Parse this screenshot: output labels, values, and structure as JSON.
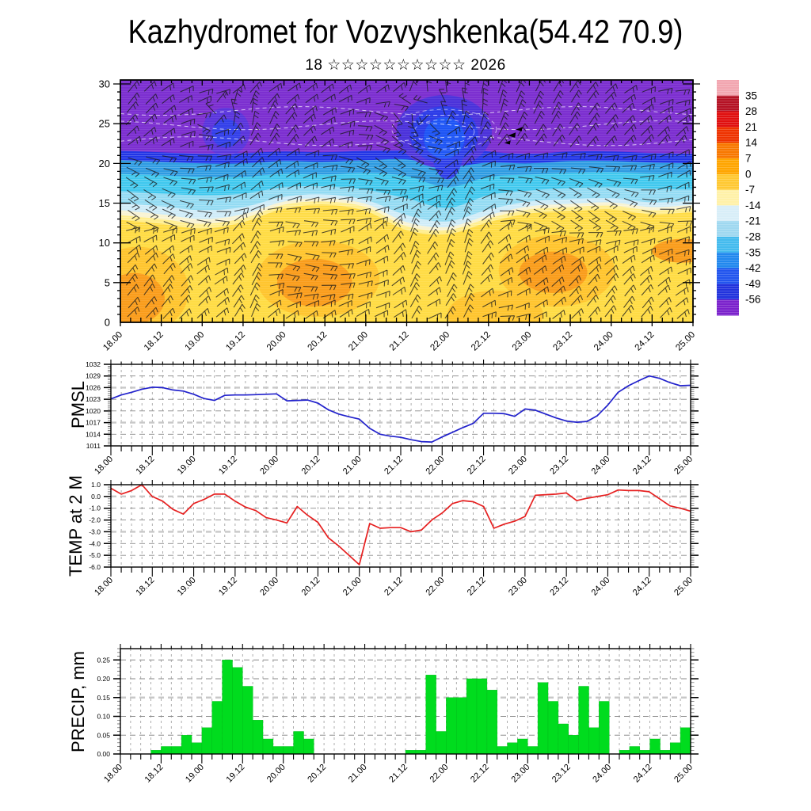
{
  "title": "Kazhydromet for Vozvyshkenka(54.42 70.9)",
  "subtitle": {
    "day": "18",
    "stars": "☆☆☆☆☆☆☆☆☆☆",
    "year": "2026"
  },
  "time_axis": {
    "major_labels": [
      "18.00",
      "18.12",
      "19.00",
      "19.12",
      "20.00",
      "20.12",
      "21.00",
      "21.12",
      "22.00",
      "22.12",
      "23.00",
      "23.12",
      "24.00",
      "24.12",
      "25.00"
    ],
    "total_hours": 168,
    "major_step_hours": 12,
    "minor_step_hours": 3
  },
  "colorbar": {
    "tick_labels": [
      "35",
      "28",
      "21",
      "14",
      "7",
      "0",
      "-7",
      "-14",
      "-21",
      "-28",
      "-35",
      "-42",
      "-49",
      "-56"
    ],
    "cell_colors_top_to_bottom": [
      "#F2A6B0",
      "#B51225",
      "#E01010",
      "#EE3300",
      "#F87800",
      "#FFA500",
      "#FFC832",
      "#FFF1A8",
      "#D8EEF8",
      "#9FD8F0",
      "#44BBEE",
      "#2288EE",
      "#2255EE",
      "#2233DD",
      "#7B22CC"
    ]
  },
  "chart_data": [
    {
      "type": "heatmap",
      "name": "temperature-wind-cross-section",
      "ylabel_ticks": [
        "0",
        "5",
        "10",
        "15",
        "20",
        "25",
        "30"
      ],
      "ylim_km": [
        0,
        30.5
      ],
      "sample_hours": [
        0,
        12,
        24,
        36,
        48,
        60,
        72,
        84,
        96,
        108,
        120,
        132,
        144,
        156,
        168
      ],
      "band_colors_top_to_bottom": [
        "#7C2FD0",
        "#2135E6",
        "#2E9BE2",
        "#3FC8EE",
        "#93DBF3",
        "#CFECF8",
        "#F8F3D2",
        "#FFEE8E",
        "#FFDC45"
      ],
      "boundaries_km_top_to_bottom": [
        [
          21.6,
          21.4,
          21.2,
          21.3,
          21.5,
          21.4,
          21.6,
          21.7,
          22.3,
          21.5,
          21.2,
          21.5,
          21.5,
          21.3,
          21.2
        ],
        [
          20.4,
          20.2,
          20.0,
          20.0,
          20.3,
          20.2,
          20.4,
          20.5,
          19.6,
          20.1,
          20.0,
          20.3,
          20.3,
          20.1,
          20.0
        ],
        [
          18.7,
          18.5,
          18.3,
          18.3,
          18.7,
          18.6,
          18.8,
          18.4,
          17.0,
          18.3,
          18.6,
          18.8,
          18.9,
          18.7,
          18.6
        ],
        [
          16.5,
          16.2,
          16.0,
          16.2,
          17.0,
          17.1,
          16.7,
          15.6,
          14.4,
          16.0,
          16.6,
          16.9,
          17.0,
          16.8,
          16.7
        ],
        [
          15.0,
          14.6,
          14.1,
          14.5,
          15.8,
          16.1,
          15.4,
          13.5,
          12.7,
          14.2,
          15.2,
          15.5,
          15.6,
          15.1,
          15.3
        ],
        [
          14.1,
          13.6,
          13.0,
          13.6,
          15.2,
          15.6,
          14.9,
          12.6,
          12.0,
          13.5,
          14.6,
          14.9,
          15.1,
          14.5,
          14.8
        ],
        [
          13.5,
          13.0,
          12.4,
          13.1,
          14.8,
          15.2,
          14.5,
          12.1,
          11.6,
          13.1,
          14.2,
          14.5,
          14.7,
          14.1,
          14.4
        ],
        [
          12.9,
          12.4,
          11.8,
          12.6,
          14.3,
          14.8,
          14.0,
          11.6,
          11.1,
          12.6,
          13.7,
          14.0,
          14.2,
          13.6,
          13.9
        ]
      ],
      "warm_cells": [
        {
          "h": 5,
          "km": 4,
          "rx": 15,
          "ry": 5.5,
          "color": "#FFC52F"
        },
        {
          "h": 4,
          "km": 3,
          "rx": 9,
          "ry": 3.2,
          "color": "#FA9D1C"
        },
        {
          "h": 58,
          "km": 5.5,
          "rx": 18,
          "ry": 4.8,
          "color": "#FFC52F"
        },
        {
          "h": 57,
          "km": 5,
          "rx": 11,
          "ry": 3,
          "color": "#FA9D1C"
        },
        {
          "h": 110,
          "km": 1,
          "rx": 14,
          "ry": 3,
          "color": "#FFC52F"
        },
        {
          "h": 128,
          "km": 6.5,
          "rx": 17,
          "ry": 4.5,
          "color": "#FFC52F"
        },
        {
          "h": 127,
          "km": 6.3,
          "rx": 10,
          "ry": 2.6,
          "color": "#FA9D1C"
        },
        {
          "h": 165,
          "km": 9,
          "rx": 9,
          "ry": 1.5,
          "color": "#FA9D1C"
        }
      ],
      "cold_cells": [
        {
          "h": 31,
          "km": 24,
          "rx": 7,
          "ry": 3,
          "color": "#5A35DC"
        },
        {
          "h": 31,
          "km": 23.8,
          "rx": 4.2,
          "ry": 1.8,
          "color": "#3340EA"
        },
        {
          "h": 95,
          "km": 24,
          "rx": 14,
          "ry": 4.6,
          "color": "#4B32DA"
        },
        {
          "h": 95,
          "km": 23.6,
          "rx": 10,
          "ry": 3.6,
          "color": "#2B3BE8"
        },
        {
          "h": 96,
          "km": 21.5,
          "rx": 4.5,
          "ry": 3.5,
          "color": "#2B3BE8"
        },
        {
          "h": 95,
          "km": 23.2,
          "rx": 6,
          "ry": 2.6,
          "color": "#1E55F5"
        }
      ],
      "contour_kms": [
        22.8,
        24.8,
        26.6
      ],
      "pennant_flags": {
        "hour": 116,
        "km": 23.8
      },
      "wind_barbs_present": true,
      "wind_barb_color": "#1a1a1a"
    },
    {
      "type": "line",
      "name": "pmsl",
      "label": "PMSL",
      "color": "#2222CC",
      "ylim": [
        1011,
        1032
      ],
      "ytick_labels": [
        "1032",
        "1029",
        "1026",
        "1023",
        "1020",
        "1017",
        "1014",
        "1011"
      ],
      "yticks": [
        1032,
        1029,
        1026,
        1023,
        1020,
        1017,
        1014,
        1011
      ],
      "emphasis_gridlines": [
        1026,
        1017
      ],
      "minor_step": 0.5,
      "hours": [
        0,
        3,
        6,
        9,
        12,
        15,
        18,
        21,
        24,
        27,
        30,
        33,
        36,
        39,
        42,
        45,
        48,
        51,
        54,
        57,
        60,
        63,
        66,
        69,
        72,
        75,
        78,
        81,
        84,
        87,
        90,
        93,
        96,
        99,
        102,
        105,
        108,
        111,
        114,
        117,
        120,
        123,
        126,
        129,
        132,
        135,
        138,
        141,
        144,
        147,
        150,
        153,
        156,
        159,
        162,
        165,
        168
      ],
      "values": [
        1023.1,
        1024.1,
        1024.8,
        1025.6,
        1026.1,
        1026.0,
        1025.4,
        1025.1,
        1024.3,
        1023.2,
        1022.7,
        1024.0,
        1024.1,
        1024.1,
        1024.2,
        1024.3,
        1024.4,
        1022.6,
        1022.7,
        1022.8,
        1022.0,
        1020.3,
        1019.2,
        1018.5,
        1017.9,
        1015.5,
        1014.0,
        1013.5,
        1013.2,
        1012.6,
        1012.1,
        1012.0,
        1013.3,
        1014.5,
        1015.7,
        1016.8,
        1019.4,
        1019.4,
        1019.3,
        1018.6,
        1020.5,
        1020.2,
        1019.2,
        1018.2,
        1017.4,
        1017.1,
        1017.3,
        1018.8,
        1021.5,
        1024.8,
        1026.5,
        1027.8,
        1029.0,
        1028.4,
        1027.3,
        1026.5,
        1026.6
      ]
    },
    {
      "type": "line",
      "name": "temp-2m",
      "label": "TEMP at 2 M",
      "color": "#E62020",
      "ylim": [
        -6,
        1
      ],
      "ytick_labels": [
        "1.0",
        "0.0",
        "-1.0",
        "-2.0",
        "-3.0",
        "-4.0",
        "-5.0",
        "-6.0"
      ],
      "yticks": [
        1,
        0,
        -1,
        -2,
        -3,
        -4,
        -5,
        -6
      ],
      "emphasis_gridlines": [
        0,
        -3
      ],
      "minor_step": 0.2,
      "hours": [
        0,
        3,
        6,
        9,
        12,
        15,
        18,
        21,
        24,
        27,
        30,
        33,
        36,
        39,
        42,
        45,
        48,
        51,
        54,
        57,
        60,
        63,
        66,
        69,
        72,
        75,
        78,
        81,
        84,
        87,
        90,
        93,
        96,
        99,
        102,
        105,
        108,
        111,
        114,
        117,
        120,
        123,
        126,
        129,
        132,
        135,
        138,
        141,
        144,
        147,
        150,
        153,
        156,
        159,
        162,
        165,
        168
      ],
      "values": [
        0.7,
        0.2,
        0.5,
        1.0,
        0.0,
        -0.4,
        -1.1,
        -1.5,
        -0.6,
        -0.25,
        0.2,
        0.2,
        -0.4,
        -0.9,
        -1.2,
        -1.8,
        -2.0,
        -2.25,
        -0.85,
        -1.6,
        -2.2,
        -3.5,
        -4.2,
        -5.0,
        -5.8,
        -2.3,
        -2.7,
        -2.65,
        -2.65,
        -3.0,
        -2.85,
        -2.0,
        -1.4,
        -0.6,
        -0.35,
        -0.45,
        -0.85,
        -2.7,
        -2.35,
        -2.1,
        -1.7,
        0.1,
        0.15,
        0.2,
        0.3,
        -0.35,
        -0.15,
        0.0,
        0.15,
        0.55,
        0.5,
        0.5,
        0.4,
        -0.2,
        -0.8,
        -1.0,
        -1.25
      ]
    },
    {
      "type": "bar",
      "name": "precip",
      "label": "PRECIP, mm",
      "color": "#00DC1E",
      "ylim": [
        0,
        0.28
      ],
      "ytick_labels": [
        "0.25",
        "0.20",
        "0.15",
        "0.10",
        "0.05",
        "0.00"
      ],
      "yticks": [
        0.25,
        0.2,
        0.15,
        0.1,
        0.05,
        0.0
      ],
      "emphasis_gridlines": [
        0.15
      ],
      "minor_step": 0.01,
      "bar_width_hours": 3,
      "hours": [
        0,
        3,
        6,
        9,
        12,
        15,
        18,
        21,
        24,
        27,
        30,
        33,
        36,
        39,
        42,
        45,
        48,
        51,
        54,
        57,
        60,
        63,
        66,
        69,
        72,
        75,
        78,
        81,
        84,
        87,
        90,
        93,
        96,
        99,
        102,
        105,
        108,
        111,
        114,
        117,
        120,
        123,
        126,
        129,
        132,
        135,
        138,
        141,
        144,
        147,
        150,
        153,
        156,
        159,
        162,
        165
      ],
      "values": [
        0,
        0,
        0,
        0.01,
        0.02,
        0.02,
        0.05,
        0.03,
        0.07,
        0.14,
        0.25,
        0.23,
        0.18,
        0.09,
        0.04,
        0.02,
        0.02,
        0.06,
        0.04,
        0,
        0,
        0,
        0,
        0,
        0,
        0,
        0,
        0,
        0.01,
        0.01,
        0.21,
        0.06,
        0.15,
        0.15,
        0.2,
        0.2,
        0.17,
        0.02,
        0.03,
        0.04,
        0.02,
        0.19,
        0.14,
        0.08,
        0.05,
        0.18,
        0.07,
        0.14,
        0,
        0.01,
        0.02,
        0.01,
        0.04,
        0.01,
        0.03,
        0.07
      ]
    }
  ]
}
